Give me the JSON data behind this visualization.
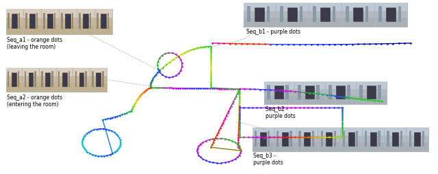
{
  "background_color": "#ffffff",
  "fig_width": 6.4,
  "fig_height": 2.54,
  "labels": {
    "seq_a1": "Seq_a1 - orange dots\n(leaving the room)",
    "seq_a2": "Seq_a2 - orange dots\n(entering the room)",
    "seq_b1": "Seq_b1 - purple dots",
    "seq_b2": "Seq_b2 -\npurple dots",
    "seq_b3": "Seq_b3 -\npurple dots"
  },
  "colors": {
    "green": "#22cc22",
    "yellow": "#dddd00",
    "red": "#ff2200",
    "blue": "#2244ff",
    "cyan": "#00cccc",
    "magenta": "#dd00dd",
    "orange": "#ff8800",
    "purple": "#8800cc",
    "dark_blue": "#0000aa",
    "lime": "#88ff00"
  },
  "font_size_label": 5.5,
  "dashed_line_color": "#aaaaaa"
}
